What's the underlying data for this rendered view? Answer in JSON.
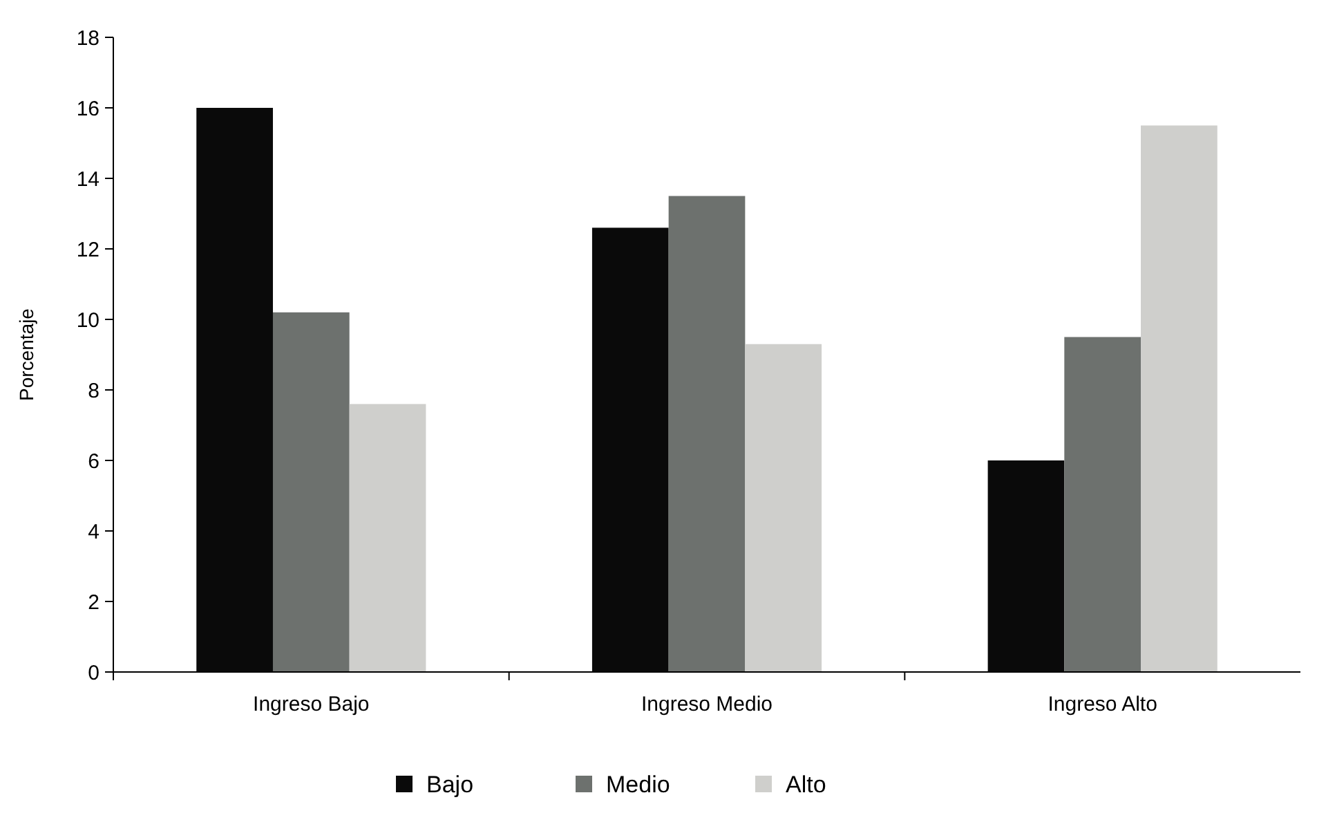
{
  "chart_data": {
    "type": "bar",
    "ylabel": "Porcentaje",
    "categories": [
      "Ingreso Bajo",
      "Ingreso Medio",
      "Ingreso Alto"
    ],
    "series": [
      {
        "name": "Bajo",
        "color": "#0a0a0a",
        "values": [
          16.0,
          12.6,
          6.0
        ]
      },
      {
        "name": "Medio",
        "color": "#6d716e",
        "values": [
          10.2,
          13.5,
          9.5
        ]
      },
      {
        "name": "Alto",
        "color": "#cfcfcc",
        "values": [
          7.6,
          9.3,
          15.5
        ]
      }
    ],
    "ylim": [
      0,
      18
    ],
    "yticks": [
      0,
      2,
      4,
      6,
      8,
      10,
      12,
      14,
      16,
      18
    ],
    "grid": false,
    "legend": "bottom"
  }
}
